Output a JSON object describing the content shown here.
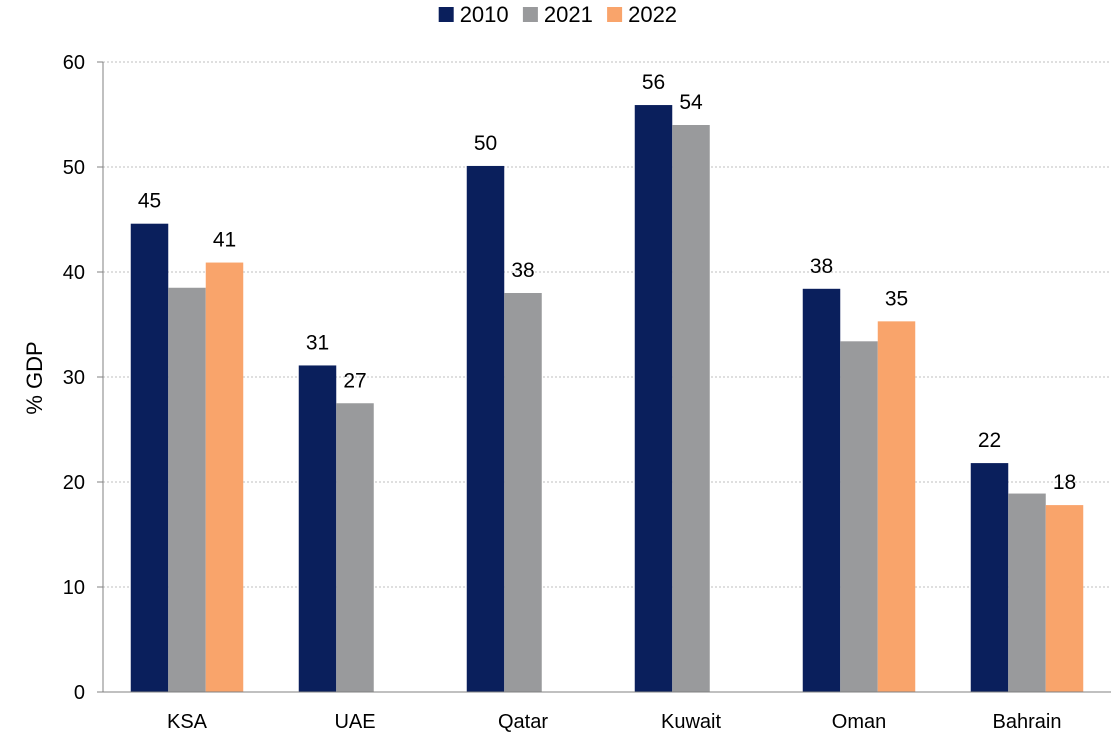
{
  "chart_data": {
    "type": "bar",
    "title": "",
    "xlabel": "",
    "ylabel": "% GDP",
    "ylim": [
      0,
      60
    ],
    "yticks": [
      0,
      10,
      20,
      30,
      40,
      50,
      60
    ],
    "grid": true,
    "legend_position": "top",
    "categories": [
      "KSA",
      "UAE",
      "Qatar",
      "Kuwait",
      "Oman",
      "Bahrain"
    ],
    "series": [
      {
        "name": "2010",
        "color": "#0a1f5c",
        "values": [
          44.6,
          31.1,
          50.1,
          55.9,
          38.4,
          21.8
        ],
        "labels": [
          "45",
          "31",
          "50",
          "56",
          "38",
          "22"
        ]
      },
      {
        "name": "2021",
        "color": "#999a9c",
        "values": [
          38.5,
          27.5,
          38.0,
          54.0,
          33.4,
          18.9
        ],
        "labels": [
          "",
          "27",
          "38",
          "54",
          "",
          ""
        ]
      },
      {
        "name": "2022",
        "color": "#f9a46b",
        "values": [
          40.9,
          null,
          null,
          null,
          35.3,
          17.8
        ],
        "labels": [
          "41",
          "",
          "",
          "",
          "35",
          "18"
        ]
      }
    ]
  }
}
